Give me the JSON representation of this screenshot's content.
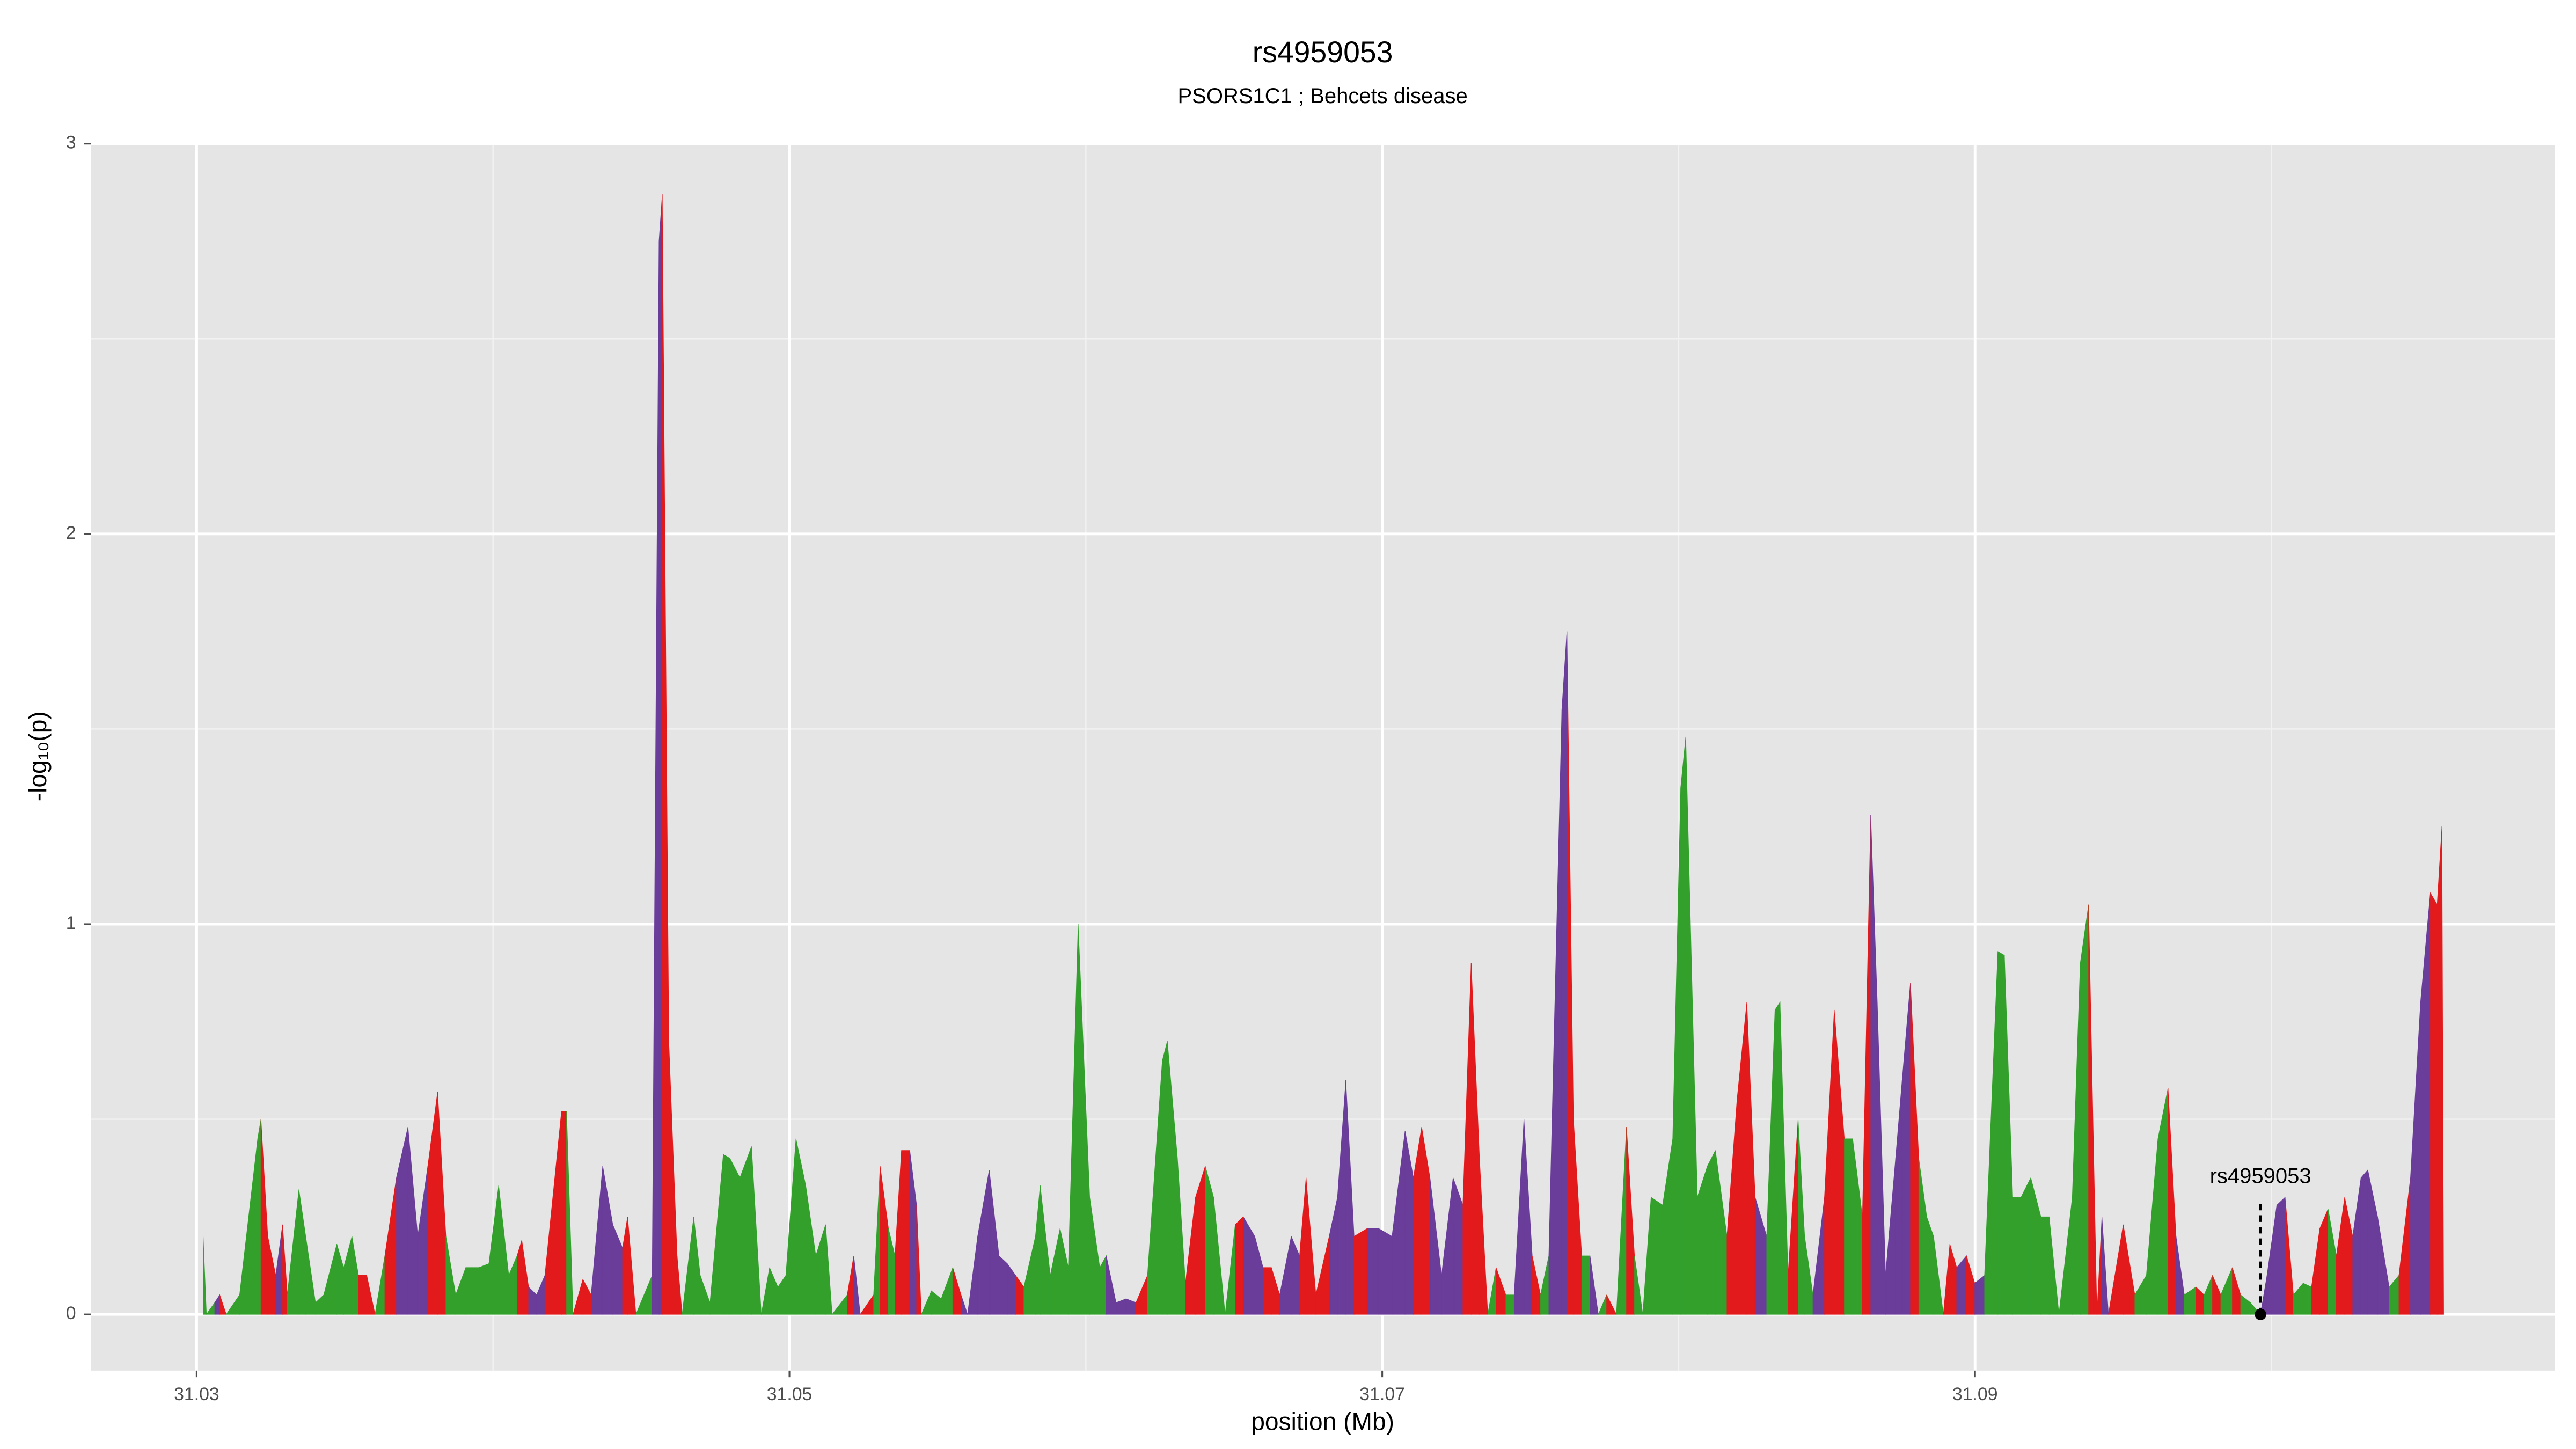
{
  "chart_data": {
    "type": "area",
    "title": "rs4959053",
    "subtitle": "PSORS1C1 ; Behcets disease",
    "xlabel": "position (Mb)",
    "ylabel": "-log₁₀(p)",
    "xlim": [
      31.02643,
      31.10955
    ],
    "ylim": [
      -0.144,
      3.0
    ],
    "xticks": [
      31.03,
      31.05,
      31.07,
      31.09
    ],
    "yticks": [
      0,
      1,
      2,
      3
    ],
    "x_minor_ticks": [
      31.04,
      31.06,
      31.08,
      31.1
    ],
    "y_minor_ticks": [
      0.5,
      1.5,
      2.5
    ],
    "grid": true,
    "series": [
      {
        "x": [
          31.03022,
          31.03033,
          31.03061,
          31.03078,
          31.031,
          31.03145,
          31.03206,
          31.03217,
          31.0324,
          31.03267,
          31.0329,
          31.03306,
          31.03345,
          31.03368,
          31.03401,
          31.03429,
          31.03473,
          31.03496,
          31.03524,
          31.03546,
          31.03574,
          31.03602,
          31.03635,
          31.03674,
          31.03713,
          31.03746,
          31.0378,
          31.03813,
          31.03841,
          31.03874,
          31.03908,
          31.03952,
          31.03986,
          31.04019,
          31.04053,
          31.04081,
          31.04097,
          31.0412,
          31.04147,
          31.04175,
          31.04231,
          31.04248,
          31.0427,
          31.04303,
          31.04331,
          31.0437,
          31.04404,
          31.04437,
          31.04454,
          31.04482,
          31.04537,
          31.0456,
          31.04571,
          31.04593,
          31.04621,
          31.04638,
          31.04677,
          31.04699,
          31.04732,
          31.04777,
          31.04799,
          31.04833,
          31.04872,
          31.04905,
          31.04933,
          31.04961,
          31.04988,
          31.05022,
          31.05055,
          31.05089,
          31.05122,
          31.05144,
          31.05195,
          31.05217,
          31.05239,
          31.05284,
          31.05306,
          31.05334,
          31.05356,
          31.05378,
          31.05406,
          31.05429,
          31.05445,
          31.05479,
          31.05512,
          31.05551,
          31.05579,
          31.05601,
          31.05635,
          31.05674,
          31.05707,
          31.05735,
          31.05763,
          31.05791,
          31.0583,
          31.05846,
          31.0588,
          31.05913,
          31.05941,
          31.05974,
          31.06013,
          31.06047,
          31.06069,
          31.06102,
          31.06136,
          31.06169,
          31.06208,
          31.06258,
          31.06275,
          31.06309,
          31.06336,
          31.0637,
          31.06403,
          31.06431,
          31.0647,
          31.06504,
          31.06531,
          31.0657,
          31.06598,
          31.06626,
          31.06654,
          31.06693,
          31.06721,
          31.06743,
          31.06776,
          31.06821,
          31.06849,
          31.06877,
          31.06905,
          31.06949,
          31.06988,
          31.07033,
          31.07077,
          31.07105,
          31.07133,
          31.07161,
          31.072,
          31.07239,
          31.07272,
          31.073,
          31.07328,
          31.07356,
          31.07384,
          31.07417,
          31.07445,
          31.07478,
          31.07506,
          31.07534,
          31.07562,
          31.07606,
          31.07623,
          31.07645,
          31.07673,
          31.07701,
          31.07729,
          31.07757,
          31.0779,
          31.07824,
          31.07851,
          31.07879,
          31.07907,
          31.07946,
          31.0798,
          31.08007,
          31.08024,
          31.08063,
          31.08097,
          31.08124,
          31.08163,
          31.08197,
          31.0823,
          31.08258,
          31.08297,
          31.08325,
          31.08342,
          31.08369,
          31.08403,
          31.08425,
          31.08453,
          31.08492,
          31.08525,
          31.08559,
          31.08587,
          31.0862,
          31.08648,
          31.0867,
          31.08698,
          31.08732,
          31.08754,
          31.08782,
          31.0881,
          31.08837,
          31.0886,
          31.08893,
          31.08915,
          31.08938,
          31.08971,
          31.08999,
          31.09032,
          31.09077,
          31.09099,
          31.09127,
          31.09155,
          31.09188,
          31.09222,
          31.0925,
          31.09283,
          31.09328,
          31.09355,
          31.09383,
          31.09411,
          31.09428,
          31.0945,
          31.095,
          31.09539,
          31.09578,
          31.09617,
          31.09651,
          31.09678,
          31.09706,
          31.09745,
          31.09773,
          31.09801,
          31.09829,
          31.09868,
          31.09896,
          31.09929,
          31.09963,
          31.09985,
          31.10018,
          31.10046,
          31.10074,
          31.10107,
          31.10135,
          31.10163,
          31.10191,
          31.10219,
          31.10247,
          31.10274,
          31.10302,
          31.10325,
          31.10358,
          31.10397,
          31.1043,
          31.10469,
          31.10503,
          31.10536,
          31.10559,
          31.10575,
          31.10581
        ],
        "values": [
          0.2,
          0,
          0.03,
          0.05,
          0,
          0.05,
          0.45,
          0.5,
          0.2,
          0.1,
          0.23,
          0.05,
          0.32,
          0.2,
          0.03,
          0.05,
          0.18,
          0.12,
          0.2,
          0.1,
          0.1,
          0,
          0.15,
          0.35,
          0.48,
          0.2,
          0.38,
          0.57,
          0.2,
          0.05,
          0.12,
          0.12,
          0.13,
          0.33,
          0.1,
          0.15,
          0.19,
          0.07,
          0.05,
          0.1,
          0.52,
          0.52,
          0,
          0.09,
          0.05,
          0.38,
          0.23,
          0.17,
          0.25,
          0,
          0.1,
          2.75,
          2.87,
          0.7,
          0.15,
          0,
          0.25,
          0.1,
          0.03,
          0.41,
          0.4,
          0.35,
          0.43,
          0,
          0.12,
          0.07,
          0.1,
          0.45,
          0.33,
          0.15,
          0.23,
          0,
          0.05,
          0.15,
          0,
          0.05,
          0.38,
          0.22,
          0.15,
          0.42,
          0.42,
          0.28,
          0,
          0.06,
          0.04,
          0.12,
          0.05,
          0,
          0.2,
          0.37,
          0.15,
          0.13,
          0.1,
          0.07,
          0.2,
          0.33,
          0.1,
          0.22,
          0.12,
          1.0,
          0.3,
          0.12,
          0.15,
          0.03,
          0.04,
          0.03,
          0.1,
          0.65,
          0.7,
          0.4,
          0.08,
          0.3,
          0.38,
          0.3,
          0,
          0.23,
          0.25,
          0.2,
          0.12,
          0.12,
          0.05,
          0.2,
          0.15,
          0.35,
          0.05,
          0.2,
          0.3,
          0.6,
          0.2,
          0.22,
          0.22,
          0.2,
          0.47,
          0.35,
          0.48,
          0.35,
          0.1,
          0.35,
          0.28,
          0.9,
          0.4,
          0,
          0.12,
          0.05,
          0.05,
          0.5,
          0.15,
          0.05,
          0.15,
          1.55,
          1.75,
          0.5,
          0.15,
          0.15,
          0,
          0.05,
          0,
          0.48,
          0.15,
          0,
          0.3,
          0.28,
          0.45,
          1.35,
          1.48,
          0.3,
          0.38,
          0.42,
          0.2,
          0.55,
          0.8,
          0.3,
          0.2,
          0.78,
          0.8,
          0.1,
          0.5,
          0.2,
          0.05,
          0.3,
          0.78,
          0.45,
          0.45,
          0.25,
          1.28,
          0.8,
          0.1,
          0.4,
          0.6,
          0.85,
          0.4,
          0.25,
          0.2,
          0,
          0.18,
          0.12,
          0.15,
          0.08,
          0.1,
          0.93,
          0.92,
          0.3,
          0.3,
          0.35,
          0.25,
          0.25,
          0,
          0.3,
          0.9,
          1.05,
          0,
          0.25,
          0,
          0.23,
          0.05,
          0.1,
          0.45,
          0.58,
          0.2,
          0.05,
          0.07,
          0.05,
          0.1,
          0.05,
          0.12,
          0.05,
          0.03,
          0,
          0.1,
          0.28,
          0.3,
          0.05,
          0.08,
          0.07,
          0.22,
          0.27,
          0.15,
          0.3,
          0.2,
          0.35,
          0.37,
          0.25,
          0.07,
          0.1,
          0.35,
          0.8,
          1.08,
          1.05,
          1.25,
          0
        ],
        "colors": [
          "#33a02c",
          "#33a02c",
          "#6a3d9a",
          "#e31a1c",
          "#33a02c",
          "#33a02c",
          "#33a02c",
          "#e31a1c",
          "#e31a1c",
          "#6a3d9a",
          "#e31a1c",
          "#33a02c",
          "#33a02c",
          "#33a02c",
          "#33a02c",
          "#33a02c",
          "#33a02c",
          "#33a02c",
          "#33a02c",
          "#e31a1c",
          "#e31a1c",
          "#33a02c",
          "#e31a1c",
          "#6a3d9a",
          "#6a3d9a",
          "#6a3d9a",
          "#e31a1c",
          "#e31a1c",
          "#33a02c",
          "#33a02c",
          "#33a02c",
          "#33a02c",
          "#33a02c",
          "#33a02c",
          "#33a02c",
          "#e31a1c",
          "#e31a1c",
          "#6a3d9a",
          "#6a3d9a",
          "#e31a1c",
          "#e31a1c",
          "#33a02c",
          "#e31a1c",
          "#e31a1c",
          "#6a3d9a",
          "#6a3d9a",
          "#6a3d9a",
          "#e31a1c",
          "#e31a1c",
          "#33a02c",
          "#6a3d9a",
          "#6a3d9a",
          "#e31a1c",
          "#e31a1c",
          "#e31a1c",
          "#33a02c",
          "#33a02c",
          "#33a02c",
          "#33a02c",
          "#33a02c",
          "#33a02c",
          "#33a02c",
          "#33a02c",
          "#33a02c",
          "#33a02c",
          "#33a02c",
          "#33a02c",
          "#33a02c",
          "#33a02c",
          "#33a02c",
          "#33a02c",
          "#33a02c",
          "#e31a1c",
          "#6a3d9a",
          "#e31a1c",
          "#33a02c",
          "#e31a1c",
          "#33a02c",
          "#e31a1c",
          "#e31a1c",
          "#6a3d9a",
          "#e31a1c",
          "#33a02c",
          "#33a02c",
          "#33a02c",
          "#e31a1c",
          "#6a3d9a",
          "#6a3d9a",
          "#6a3d9a",
          "#6a3d9a",
          "#6a3d9a",
          "#6a3d9a",
          "#e31a1c",
          "#33a02c",
          "#33a02c",
          "#33a02c",
          "#33a02c",
          "#33a02c",
          "#33a02c",
          "#33a02c",
          "#33a02c",
          "#33a02c",
          "#6a3d9a",
          "#6a3d9a",
          "#6a3d9a",
          "#e31a1c",
          "#33a02c",
          "#33a02c",
          "#33a02c",
          "#33a02c",
          "#e31a1c",
          "#e31a1c",
          "#33a02c",
          "#33a02c",
          "#33a02c",
          "#e31a1c",
          "#6a3d9a",
          "#6a3d9a",
          "#e31a1c",
          "#e31a1c",
          "#6a3d9a",
          "#6a3d9a",
          "#e31a1c",
          "#e31a1c",
          "#e31a1c",
          "#6a3d9a",
          "#6a3d9a",
          "#6a3d9a",
          "#e31a1c",
          "#6a3d9a",
          "#6a3d9a",
          "#6a3d9a",
          "#6a3d9a",
          "#e31a1c",
          "#e31a1c",
          "#6a3d9a",
          "#6a3d9a",
          "#6a3d9a",
          "#e31a1c",
          "#e31a1c",
          "#e31a1c",
          "#33a02c",
          "#e31a1c",
          "#33a02c",
          "#6a3d9a",
          "#6a3d9a",
          "#e31a1c",
          "#33a02c",
          "#6a3d9a",
          "#6a3d9a",
          "#e31a1c",
          "#e31a1c",
          "#33a02c",
          "#6a3d9a",
          "#33a02c",
          "#e31a1c",
          "#33a02c",
          "#e31a1c",
          "#33a02c",
          "#33a02c",
          "#33a02c",
          "#33a02c",
          "#33a02c",
          "#33a02c",
          "#33a02c",
          "#33a02c",
          "#33a02c",
          "#33a02c",
          "#e31a1c",
          "#e31a1c",
          "#e31a1c",
          "#6a3d9a",
          "#33a02c",
          "#33a02c",
          "#33a02c",
          "#e31a1c",
          "#33a02c",
          "#33a02c",
          "#6a3d9a",
          "#e31a1c",
          "#e31a1c",
          "#33a02c",
          "#33a02c",
          "#e31a1c",
          "#6a3d9a",
          "#6a3d9a",
          "#6a3d9a",
          "#6a3d9a",
          "#6a3d9a",
          "#e31a1c",
          "#33a02c",
          "#33a02c",
          "#33a02c",
          "#e31a1c",
          "#e31a1c",
          "#6a3d9a",
          "#e31a1c",
          "#6a3d9a",
          "#33a02c",
          "#33a02c",
          "#33a02c",
          "#33a02c",
          "#33a02c",
          "#33a02c",
          "#33a02c",
          "#33a02c",
          "#33a02c",
          "#33a02c",
          "#33a02c",
          "#e31a1c",
          "#e31a1c",
          "#6a3d9a",
          "#e31a1c",
          "#e31a1c",
          "#33a02c",
          "#33a02c",
          "#33a02c",
          "#e31a1c",
          "#6a3d9a",
          "#33a02c",
          "#e31a1c",
          "#33a02c",
          "#e31a1c",
          "#33a02c",
          "#e31a1c",
          "#33a02c",
          "#33a02c",
          "#6a3d9a",
          "#6a3d9a",
          "#6a3d9a",
          "#e31a1c",
          "#33a02c",
          "#33a02c",
          "#e31a1c",
          "#e31a1c",
          "#33a02c",
          "#e31a1c",
          "#e31a1c",
          "#6a3d9a",
          "#6a3d9a",
          "#6a3d9a",
          "#6a3d9a",
          "#33a02c",
          "#e31a1c",
          "#6a3d9a",
          "#6a3d9a",
          "#e31a1c",
          "#e31a1c",
          "#e31a1c",
          "#e31a1c"
        ]
      }
    ],
    "annotation": {
      "text": "rs4959053",
      "x": 31.09963,
      "y": 0
    }
  }
}
